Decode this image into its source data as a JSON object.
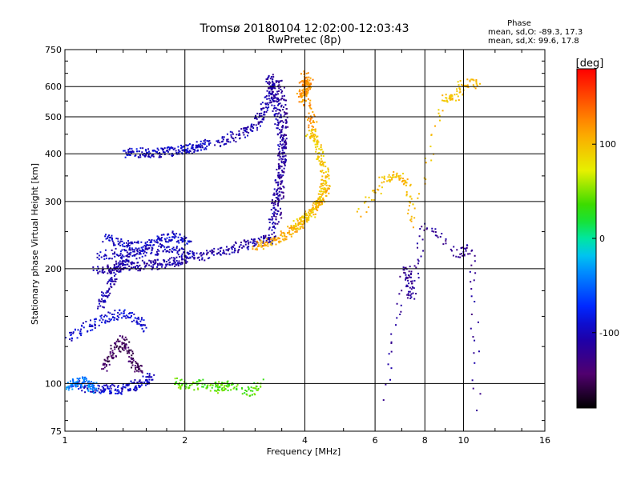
{
  "chart_data": {
    "type": "scatter",
    "title": "Tromsø 20180104 12:02:00-12:03:43",
    "subtitle": "RwPretec (8p)",
    "xlabel": "Frequency [MHz]",
    "ylabel": "Stationary phase Virtual Height [km]",
    "x_scale": "log",
    "y_scale": "log",
    "xlim": [
      1,
      16
    ],
    "ylim": [
      75,
      750
    ],
    "x_ticks": [
      1,
      2,
      4,
      6,
      8,
      10,
      16
    ],
    "y_ticks": [
      75,
      100,
      200,
      300,
      400,
      500,
      600,
      750
    ],
    "grid": true,
    "stats": {
      "title": "Phase",
      "line_o": "mean, sd,O: -89.3, 17.3",
      "line_x": "mean, sd,X:  99.6, 17.8"
    },
    "colorbar": {
      "label": "[deg]",
      "range": [
        -180,
        180
      ],
      "ticks": [
        100,
        0,
        -100
      ]
    },
    "series": [
      {
        "x": [
          1.05,
          1.12,
          1.2,
          1.28,
          1.35,
          1.42,
          1.5,
          1.58,
          1.65
        ],
        "y": [
          100,
          98,
          97,
          97,
          96,
          97,
          99,
          101,
          104
        ],
        "phase": -95
      },
      {
        "x": [
          1.0,
          1.05,
          1.1,
          1.15,
          1.2
        ],
        "y": [
          98,
          100,
          102,
          99,
          97
        ],
        "phase": -40
      },
      {
        "x": [
          1.0,
          1.1,
          1.2,
          1.3,
          1.4,
          1.5,
          1.6
        ],
        "y": [
          130,
          138,
          145,
          150,
          152,
          148,
          140
        ],
        "phase": -90
      },
      {
        "x": [
          1.25,
          1.3,
          1.35,
          1.4,
          1.45,
          1.5,
          1.55
        ],
        "y": [
          110,
          118,
          125,
          130,
          120,
          112,
          108
        ],
        "phase": -150
      },
      {
        "x": [
          1.22,
          1.26,
          1.3,
          1.35,
          1.4,
          1.45
        ],
        "y": [
          160,
          170,
          185,
          200,
          210,
          215
        ],
        "phase": -105
      },
      {
        "x": [
          1.2,
          1.3,
          1.4,
          1.5,
          1.6,
          1.7,
          1.8,
          1.9,
          2.0,
          2.2,
          2.4,
          2.6,
          2.8,
          3.0,
          3.2,
          3.35
        ],
        "y": [
          198,
          200,
          202,
          203,
          204,
          205,
          207,
          209,
          212,
          215,
          220,
          225,
          230,
          235,
          238,
          240
        ],
        "phase": -110
      },
      {
        "x": [
          1.25,
          1.35,
          1.45,
          1.55,
          1.65,
          1.75,
          1.85,
          1.95,
          2.05
        ],
        "y": [
          240,
          235,
          230,
          228,
          232,
          238,
          245,
          240,
          235
        ],
        "phase": -95
      },
      {
        "x": [
          1.2,
          1.35,
          1.5,
          1.65,
          1.8,
          1.95,
          2.1
        ],
        "y": [
          215,
          220,
          218,
          222,
          225,
          220,
          218
        ],
        "phase": -100
      },
      {
        "x": [
          1.42,
          1.5,
          1.6,
          1.7,
          1.8,
          1.9,
          2.0,
          2.1,
          2.2,
          2.3
        ],
        "y": [
          400,
          402,
          403,
          402,
          404,
          406,
          410,
          415,
          420,
          425
        ],
        "phase": -95
      },
      {
        "x": [
          2.4,
          2.6,
          2.8,
          3.0,
          3.1,
          3.2,
          3.3,
          3.35
        ],
        "y": [
          430,
          440,
          455,
          475,
          500,
          540,
          580,
          610
        ],
        "phase": -105
      },
      {
        "x": [
          3.3,
          3.35,
          3.4,
          3.45,
          3.5,
          3.5,
          3.45,
          3.4,
          3.35,
          3.3,
          3.25
        ],
        "y": [
          250,
          280,
          310,
          340,
          380,
          420,
          470,
          520,
          560,
          600,
          640
        ],
        "phase": -110
      },
      {
        "x": [
          3.4,
          3.45,
          3.5,
          3.52,
          3.55,
          3.55,
          3.5,
          3.45
        ],
        "y": [
          260,
          300,
          350,
          400,
          450,
          500,
          560,
          620
        ],
        "phase": -120
      },
      {
        "x": [
          3.0,
          3.2,
          3.4,
          3.6,
          3.8,
          4.0,
          4.2,
          4.4,
          4.6
        ],
        "y": [
          228,
          232,
          238,
          245,
          255,
          268,
          285,
          305,
          330
        ],
        "phase": 110
      },
      {
        "x": [
          3.7,
          3.9,
          4.1,
          4.3,
          4.4,
          4.5,
          4.5,
          4.4,
          4.3,
          4.2,
          4.1
        ],
        "y": [
          255,
          265,
          275,
          290,
          310,
          330,
          360,
          390,
          420,
          440,
          460
        ],
        "phase": 95
      },
      {
        "x": [
          3.9,
          4.0,
          4.05,
          4.1,
          4.0,
          3.95,
          4.1,
          4.2
        ],
        "y": [
          560,
          580,
          600,
          620,
          640,
          590,
          510,
          470
        ],
        "phase": 120
      },
      {
        "x": [
          5.5,
          6.3,
          6.8,
          7.2,
          7.5,
          9.0,
          9.5,
          10.0,
          11.0
        ],
        "y": [
          280,
          340,
          350,
          340,
          260,
          560,
          560,
          610,
          610
        ],
        "phase": 100
      },
      {
        "x": [
          6.4,
          7.2,
          7.3,
          7.4,
          8.0,
          9.6,
          10.5,
          10.8
        ],
        "y": [
          92,
          200,
          185,
          165,
          260,
          220,
          225,
          85
        ],
        "phase": -120
      },
      {
        "x": [
          1.9,
          2.0,
          2.2,
          2.4,
          2.5,
          2.6,
          2.9,
          3.1
        ],
        "y": [
          102,
          98,
          100,
          97,
          99,
          98,
          95,
          100
        ],
        "phase": 40
      }
    ]
  }
}
